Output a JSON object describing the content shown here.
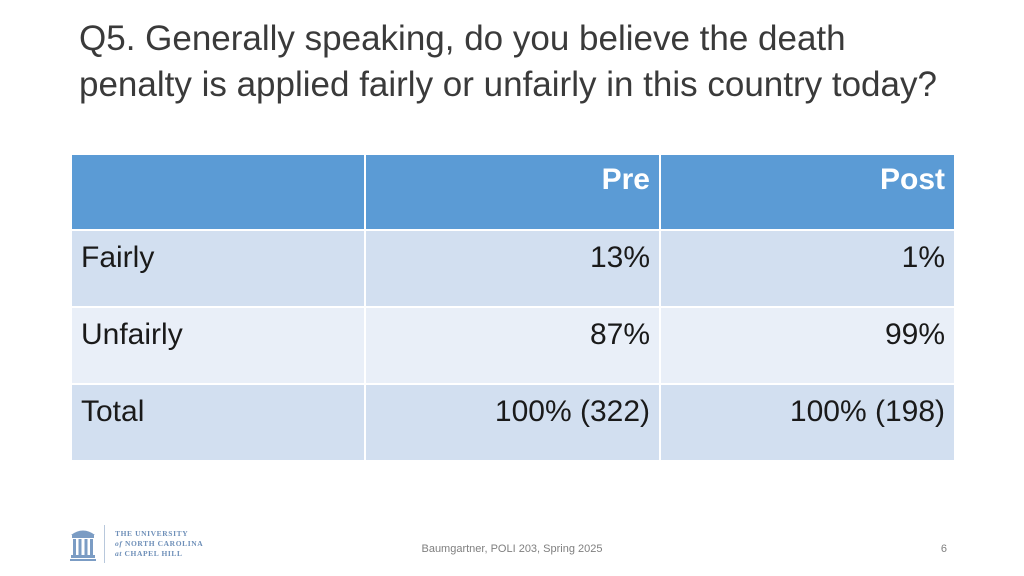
{
  "slide": {
    "title": "Q5. Generally speaking, do you believe the death penalty is applied fairly or unfairly in this country today?",
    "footer": "Baumgartner, POLI 203, Spring 2025",
    "page_number": "6"
  },
  "table": {
    "headers": [
      "",
      "Pre",
      "Post"
    ],
    "rows": [
      [
        "Fairly",
        "13%",
        "1%"
      ],
      [
        "Unfairly",
        "87%",
        "99%"
      ],
      [
        "Total",
        "100% (322)",
        "100% (198)"
      ]
    ]
  },
  "logo": {
    "line1": "THE UNIVERSITY",
    "line2_a": "of",
    "line2_b": "NORTH CAROLINA",
    "line3_a": "at",
    "line3_b": "CHAPEL HILL"
  },
  "colors": {
    "header_bg": "#5b9bd5",
    "row_odd": "#d2dff0",
    "row_even": "#e9eff8",
    "logo_blue": "#6e8fb8"
  }
}
